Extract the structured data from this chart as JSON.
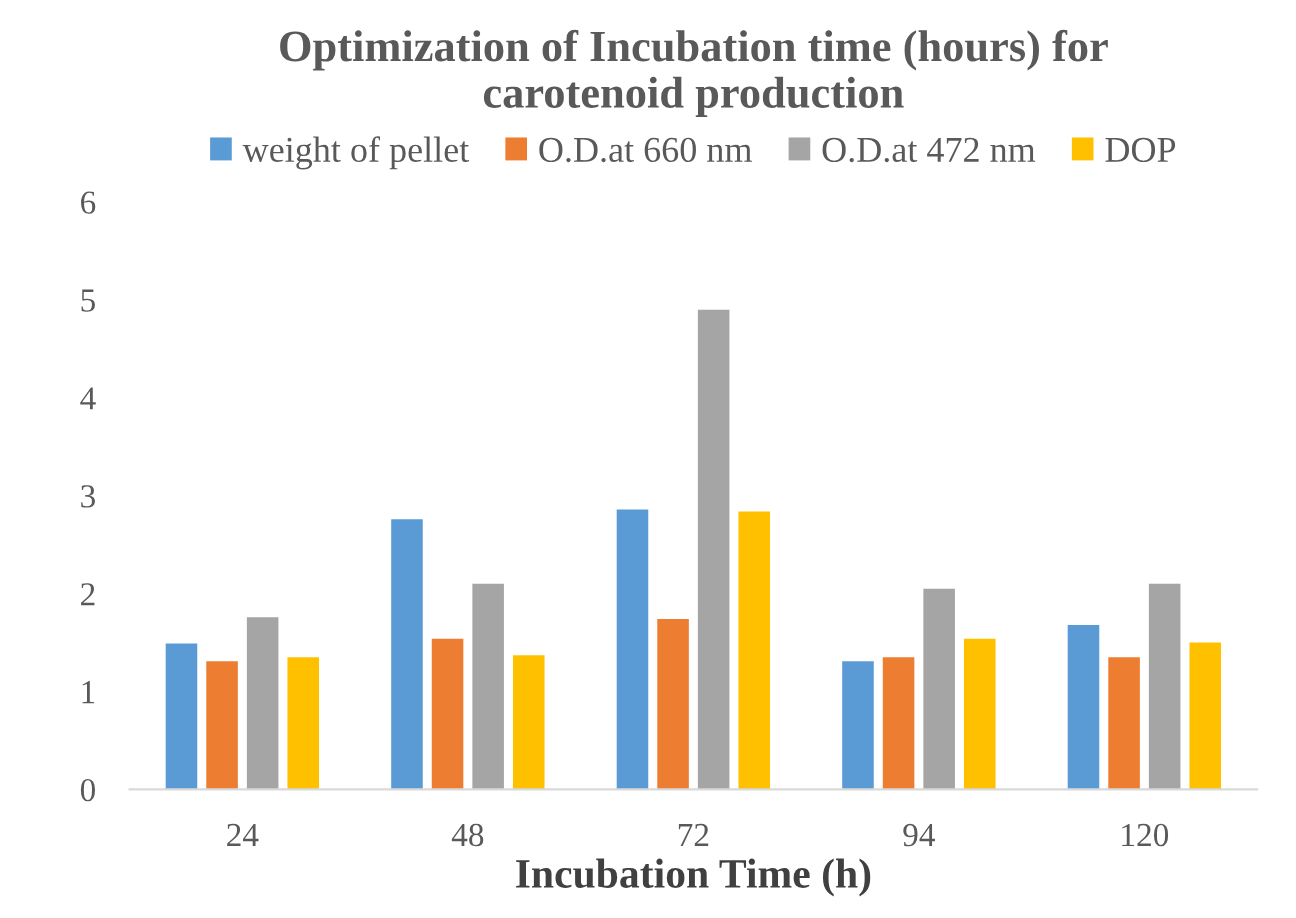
{
  "chart_data": {
    "type": "bar",
    "title": "Optimization of Incubation time (hours) for\ncarotenoid production",
    "xlabel": "Incubation Time (h)",
    "categories": [
      "24",
      "48",
      "72",
      "94",
      "120"
    ],
    "series": [
      {
        "name": "weight of pellet",
        "color": "#5b9bd5",
        "values": [
          1.49,
          2.76,
          2.86,
          1.31,
          1.68
        ]
      },
      {
        "name": "O.D.at 660 nm",
        "color": "#ed7d31",
        "values": [
          1.31,
          1.54,
          1.74,
          1.35,
          1.35
        ]
      },
      {
        "name": "O.D.at 472 nm",
        "color": "#a5a5a5",
        "values": [
          1.76,
          2.1,
          4.9,
          2.05,
          2.1
        ]
      },
      {
        "name": "DOP",
        "color": "#ffc000",
        "values": [
          1.35,
          1.37,
          2.84,
          1.54,
          1.5
        ]
      }
    ],
    "ylim": [
      0,
      6
    ],
    "yticks": [
      0,
      1,
      2,
      3,
      4,
      5,
      6
    ],
    "grid": false,
    "legend": "top"
  }
}
